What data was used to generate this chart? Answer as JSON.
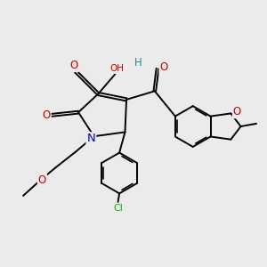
{
  "background_color": "#ebebeb",
  "fig_size": [
    3.0,
    3.0
  ],
  "dpi": 100,
  "atom_colors": {
    "O": "#cc0000",
    "N": "#0000cc",
    "Cl": "#00bb00",
    "H_teal": "#2a8888",
    "C": "#000000"
  },
  "bond_color": "#000000",
  "bond_lw": 1.4,
  "font_size_atom": 8.5
}
